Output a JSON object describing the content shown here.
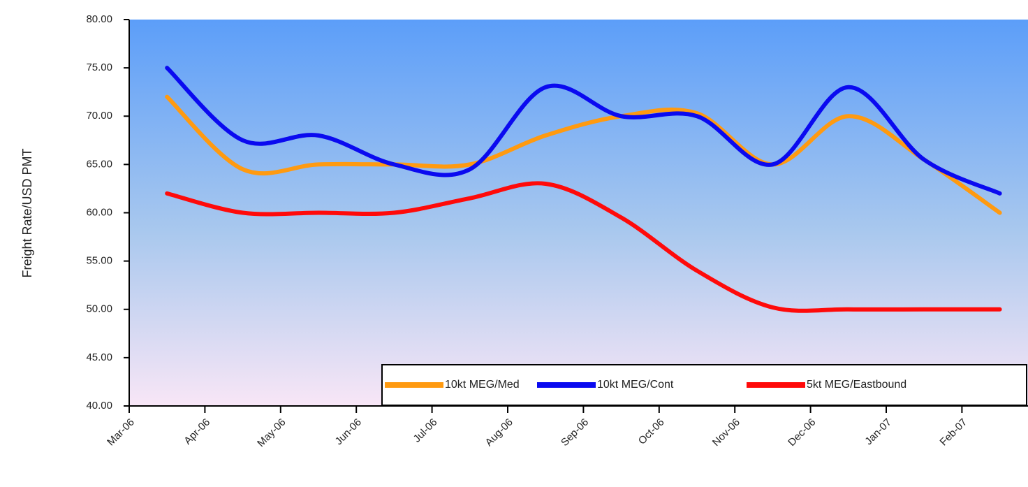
{
  "chart_data": {
    "type": "line",
    "y_label": "Freight Rate/USD PMT",
    "categories": [
      "Mar-06",
      "Apr-06",
      "May-06",
      "Jun-06",
      "Jul-06",
      "Aug-06",
      "Sep-06",
      "Oct-06",
      "Nov-06",
      "Dec-06",
      "Jan-07",
      "Feb-07"
    ],
    "series": [
      {
        "name": "10kt MEG/Med",
        "color": "#ff9a10",
        "values": [
          72,
          64.5,
          65,
          65,
          65,
          68,
          70,
          70.3,
          65,
          70,
          65.5,
          60
        ]
      },
      {
        "name": "10kt MEG/Cont",
        "color": "#0a0af0",
        "values": [
          75,
          67.5,
          68,
          65,
          64.5,
          73,
          70,
          70,
          65,
          73,
          65.5,
          62
        ]
      },
      {
        "name": "5kt MEG/Eastbound",
        "color": "#ff0a0a",
        "values": [
          62,
          60,
          60,
          60,
          61.5,
          63,
          59.5,
          54,
          50.2,
          50,
          50,
          50
        ]
      }
    ],
    "ylim": [
      40,
      80
    ],
    "yticks": [
      {
        "value": 40,
        "label": "40.00"
      },
      {
        "value": 45,
        "label": "45.00"
      },
      {
        "value": 50,
        "label": "50.00"
      },
      {
        "value": 55,
        "label": "55.00"
      },
      {
        "value": 60,
        "label": "60.00"
      },
      {
        "value": 65,
        "label": "65.00"
      },
      {
        "value": 70,
        "label": "70.00"
      },
      {
        "value": 75,
        "label": "75.00"
      },
      {
        "value": 80,
        "label": "80.00"
      }
    ],
    "legend": "lower right",
    "smooth": true
  }
}
